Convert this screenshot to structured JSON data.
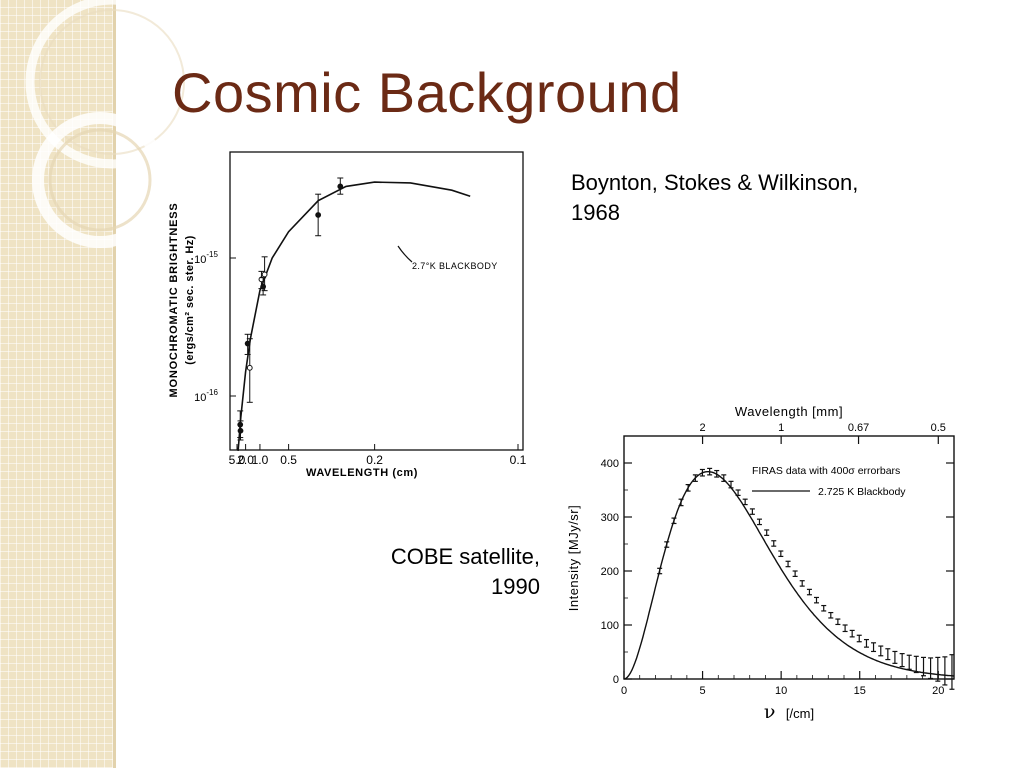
{
  "slide": {
    "title": "Cosmic Background",
    "caption_top_line1": "Boynton, Stokes & Wilkinson,",
    "caption_top_line2": "1968",
    "caption_bottom_line1": "COBE satellite,",
    "caption_bottom_line2": "1990"
  },
  "colors": {
    "title": "#6b2a15",
    "sidebar": "#efe3c4",
    "ink": "#111111"
  },
  "chart_data": [
    {
      "type": "scatter",
      "title": "",
      "xlabel": "WAVELENGTH (cm)",
      "ylabel": "MONOCHROMATIC BRIGHTNESS",
      "ylabel_units": "(ergs/cm² sec. ster. Hz)",
      "x_scale": "reciprocal",
      "xlim": [
        5.0,
        0.1
      ],
      "y_scale": "log",
      "x_ticks": [
        {
          "value": 5.0,
          "label": "5.0"
        },
        {
          "value": 2.0,
          "label": "2.0"
        },
        {
          "value": 1.0,
          "label": "1.0"
        },
        {
          "value": 0.5,
          "label": "0.5"
        },
        {
          "value": 0.2,
          "label": "0.2"
        },
        {
          "value": 0.1,
          "label": "0.1"
        }
      ],
      "y_ticks": [
        {
          "value": 1e-15,
          "label_base": "10",
          "label_exp": "-15"
        },
        {
          "value": 1e-16,
          "label_base": "10",
          "label_exp": "-16"
        }
      ],
      "annotation": "2.7°K BLACKBODY",
      "points": [
        {
          "x": 3.2,
          "y": 6.2e-17,
          "err": [
            5e-17,
            7.8e-17
          ],
          "marker": "filled"
        },
        {
          "x": 3.1,
          "y": 5.6e-17,
          "err": [
            4.8e-17,
            6.6e-17
          ],
          "marker": "filled"
        },
        {
          "x": 1.75,
          "y": 2.4e-16,
          "err": [
            2e-16,
            2.8e-16
          ],
          "marker": "filled"
        },
        {
          "x": 1.55,
          "y": 1.6e-16,
          "err": [
            9e-17,
            2.6e-16
          ],
          "marker": "open"
        },
        {
          "x": 0.95,
          "y": 7e-16,
          "err": [
            6e-16,
            8e-16
          ],
          "marker": "open"
        },
        {
          "x": 0.9,
          "y": 6.2e-16,
          "err": [
            5.4e-16,
            7.2e-16
          ],
          "marker": "filled"
        },
        {
          "x": 0.86,
          "y": 7.6e-16,
          "err": [
            5.8e-16,
            1.02e-15
          ],
          "marker": "open"
        },
        {
          "x": 0.33,
          "y": 2.05e-15,
          "err": [
            1.45e-15,
            2.9e-15
          ],
          "marker": "filled"
        },
        {
          "x": 0.263,
          "y": 3.3e-15,
          "err": [
            2.9e-15,
            3.8e-15
          ],
          "marker": "filled"
        }
      ],
      "curve": {
        "name": "2.7°K BLACKBODY",
        "x": [
          4.2,
          3.0,
          2.0,
          1.5,
          1.0,
          0.7,
          0.5,
          0.33,
          0.25,
          0.2,
          0.16,
          0.13,
          0.12
        ],
        "y": [
          4e-17,
          7e-17,
          1.5e-16,
          2.6e-16,
          5.8e-16,
          1e-15,
          1.55e-15,
          2.6e-15,
          3.3e-15,
          3.55e-15,
          3.5e-15,
          3.1e-15,
          2.8e-15
        ]
      }
    },
    {
      "type": "line",
      "title": "",
      "xlabel": "ν [/cm]",
      "xlabel_symbol": "ν",
      "xlabel_unit": "[/cm]",
      "ylabel": "Intensity [MJy/sr]",
      "top_xlabel": "Wavelength [mm]",
      "xlim": [
        0,
        21
      ],
      "ylim": [
        0,
        430
      ],
      "x_ticks": [
        0,
        5,
        10,
        15,
        20
      ],
      "y_ticks": [
        0,
        100,
        200,
        300,
        400
      ],
      "top_ticks": [
        {
          "wavelength_mm": 2,
          "label": "2"
        },
        {
          "wavelength_mm": 1,
          "label": "1"
        },
        {
          "wavelength_mm": 0.67,
          "label": "0.67"
        },
        {
          "wavelength_mm": 0.5,
          "label": "0.5"
        }
      ],
      "legend_position": "top-right",
      "series": [
        {
          "name": "FIRAS data with 400σ errorbars",
          "marker": "errorbar",
          "x": [
            2.27,
            2.72,
            3.18,
            3.63,
            4.08,
            4.54,
            4.99,
            5.45,
            5.9,
            6.35,
            6.81,
            7.26,
            7.71,
            8.17,
            8.62,
            9.08,
            9.53,
            9.98,
            10.44,
            10.89,
            11.34,
            11.8,
            12.25,
            12.71,
            13.16,
            13.61,
            14.07,
            14.52,
            14.97,
            15.43,
            15.88,
            16.34,
            16.79,
            17.24,
            17.7,
            18.15,
            18.6,
            19.06,
            19.51,
            19.97,
            20.42,
            20.87
          ],
          "y": [
            200,
            249,
            293,
            327,
            354,
            372,
            382,
            384,
            380,
            372,
            360,
            345,
            328,
            310,
            291,
            271,
            251,
            232,
            213,
            195,
            177,
            161,
            146,
            131,
            118,
            106,
            94,
            84,
            75,
            66,
            59,
            52,
            46,
            40,
            35,
            31,
            27,
            23,
            20,
            18,
            15,
            13
          ],
          "err": [
            5,
            5,
            5,
            6,
            6,
            6,
            6,
            6,
            6,
            6,
            6,
            5,
            5,
            5,
            5,
            5,
            5,
            5,
            5,
            5,
            5,
            5,
            5,
            5,
            5,
            5,
            6,
            6,
            6,
            7,
            8,
            9,
            10,
            11,
            12,
            13,
            15,
            17,
            19,
            22,
            26,
            32
          ]
        },
        {
          "name": "2.725 K Blackbody",
          "marker": "line"
        }
      ]
    }
  ]
}
